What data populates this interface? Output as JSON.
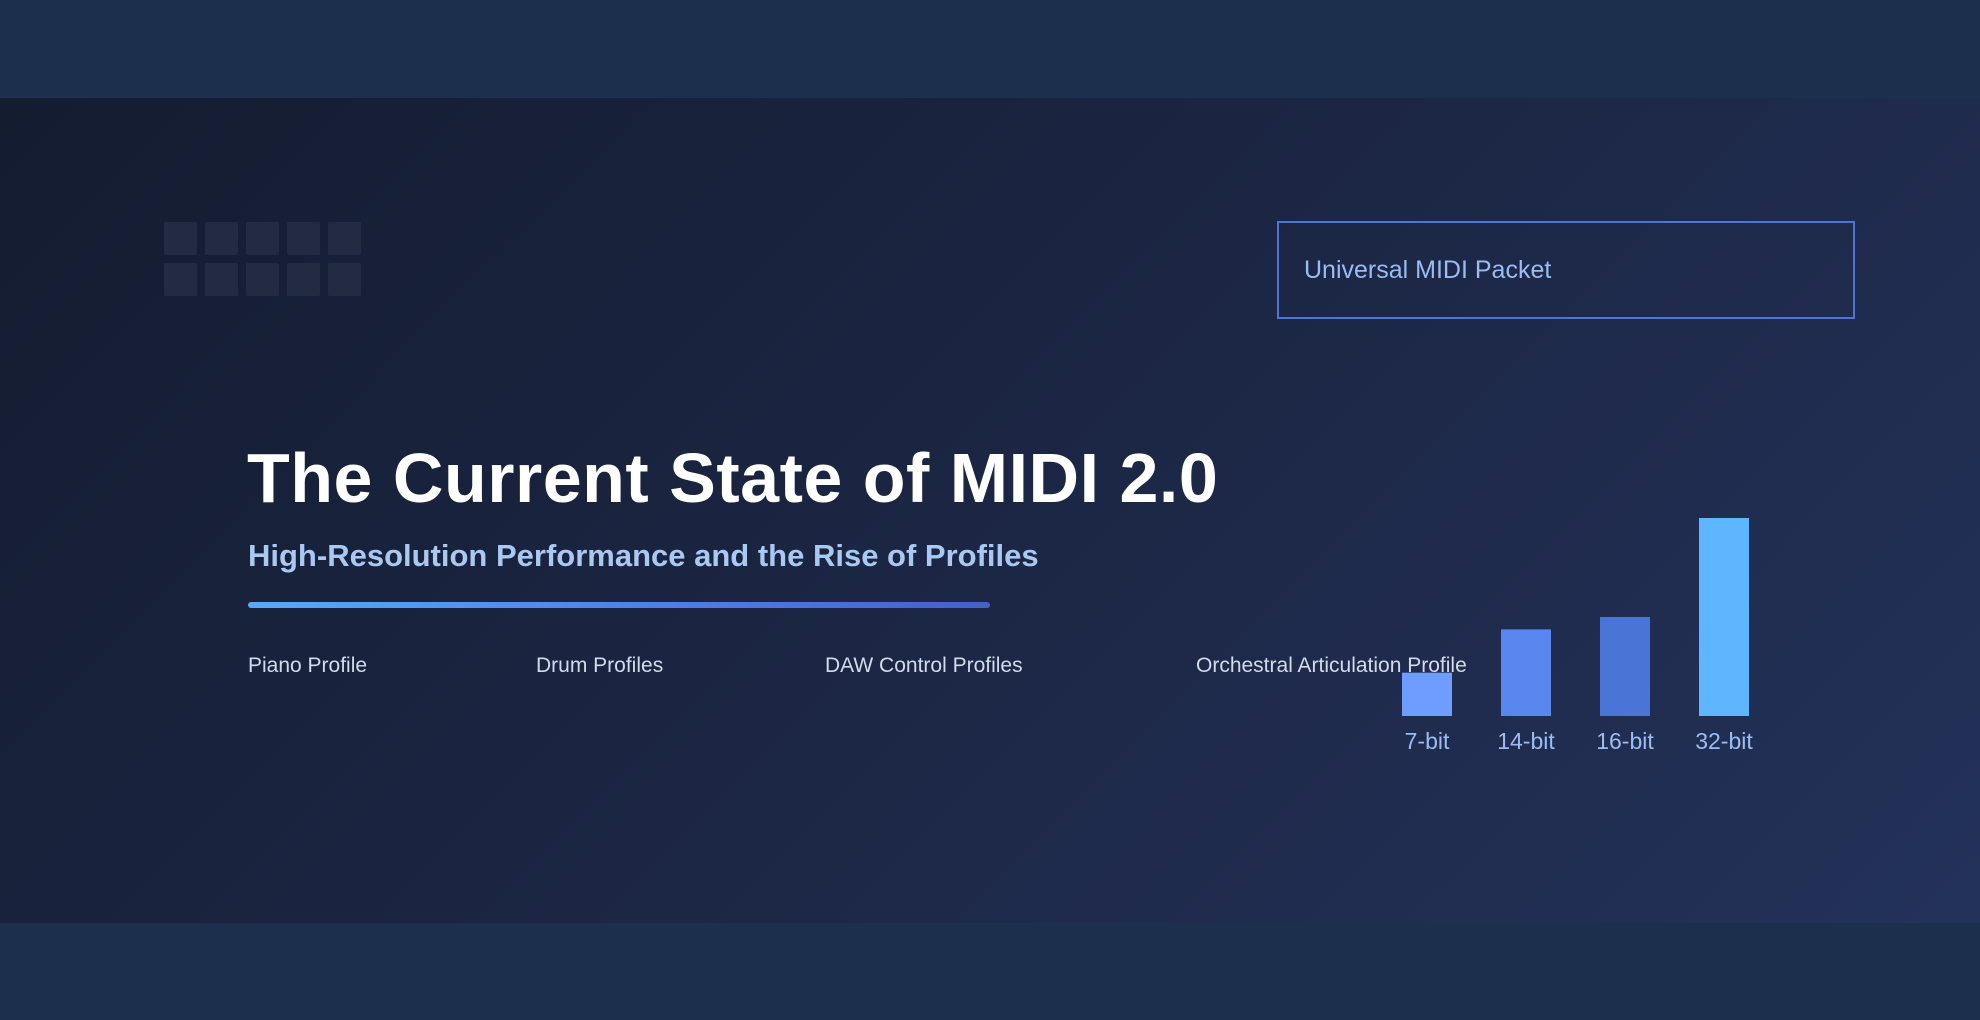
{
  "packet": {
    "label": "Universal MIDI Packet"
  },
  "hero": {
    "title": "The Current State of MIDI 2.0",
    "subtitle": "High-Resolution Performance and the Rise of Profiles"
  },
  "profiles": [
    "Piano Profile",
    "Drum Profiles",
    "DAW Control Profiles",
    "Orchestral Articulation Profile"
  ],
  "chart_data": {
    "type": "bar",
    "categories": [
      "7-bit",
      "14-bit",
      "16-bit",
      "32-bit"
    ],
    "values": [
      7,
      14,
      16,
      32
    ],
    "colors": [
      "#6f9cff",
      "#5a86ef",
      "#4a75d6",
      "#5db6ff"
    ],
    "title": "",
    "xlabel": "",
    "ylabel": "",
    "ylim": [
      0,
      32
    ],
    "grid": false,
    "legend": "none"
  },
  "theme": {
    "accent": "#4f74d6",
    "label_color": "#9bbcf2"
  }
}
